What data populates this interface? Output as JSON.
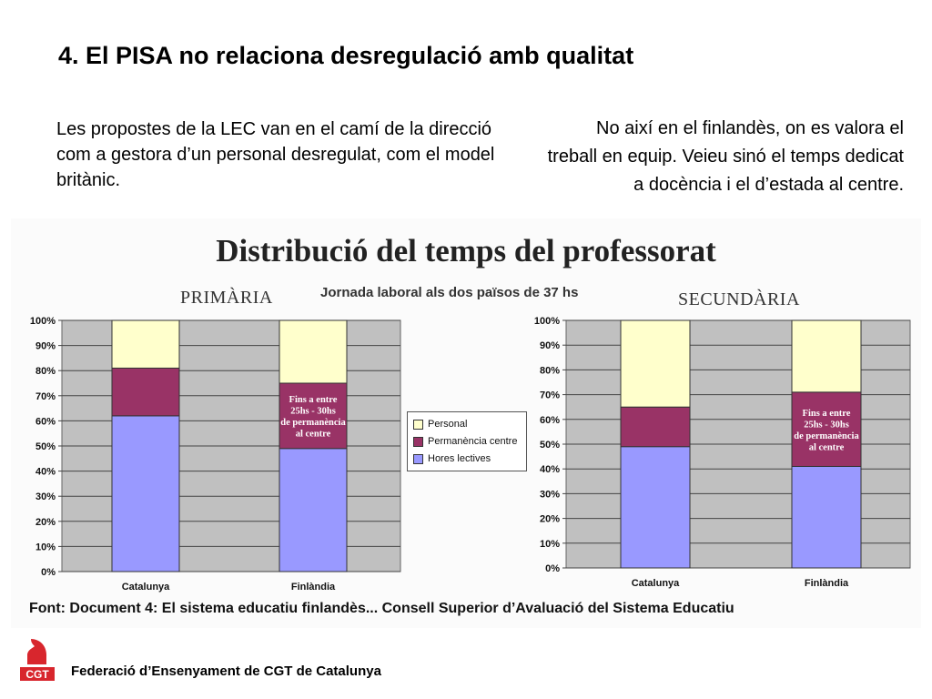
{
  "slide": {
    "title": "4. El PISA no relaciona desregulació amb qualitat",
    "left_text": "Les propostes de la LEC van en el camí de la direcció com a gestora d’un personal desregulat, com el model britànic.",
    "right_text": "No així en el finlandès, on es valora el treball en equip. Veieu sinó el temps dedicat a docència i el d’estada al centre.",
    "footer": "Federació d’Ensenyament de CGT de Catalunya",
    "logo_text": "CGT",
    "logo_icon": "cgt-logo-icon"
  },
  "figure": {
    "title": "Distribució del temps del professorat",
    "subtitle": "Jornada laboral als dos països de 37 hs",
    "source": "Font: Document 4: El sistema educatiu finlandès... Consell Superior d’Avaluació del Sistema Educatiu"
  },
  "colors": {
    "personal": "#ffffcc",
    "permanencia": "#993366",
    "hores": "#9999ff",
    "plot_bg": "#c0c0c0",
    "logo": "#d8262d"
  },
  "legend": {
    "items": [
      {
        "label": "Personal",
        "color": "#ffffcc"
      },
      {
        "label": "Permanència centre",
        "color": "#993366"
      },
      {
        "label": "Hores lectives",
        "color": "#9999ff"
      }
    ]
  },
  "chart_data": [
    {
      "type": "bar",
      "stacked": true,
      "title": "PRIMÀRIA",
      "categories": [
        "Catalunya",
        "Finlàndia"
      ],
      "series": [
        {
          "name": "Hores lectives",
          "values": [
            62,
            49
          ]
        },
        {
          "name": "Permanència centre",
          "values": [
            19,
            26
          ]
        },
        {
          "name": "Personal",
          "values": [
            19,
            25
          ]
        }
      ],
      "ylim": [
        0,
        100
      ],
      "yticks": [
        "0%",
        "10%",
        "20%",
        "30%",
        "40%",
        "50%",
        "60%",
        "70%",
        "80%",
        "90%",
        "100%"
      ],
      "annotation": {
        "lines": [
          "Fins a entre",
          "25hs - 30hs",
          "de permanència",
          "al centre"
        ],
        "category_index": 1
      },
      "grid": true,
      "legend": "right"
    },
    {
      "type": "bar",
      "stacked": true,
      "title": "SECUNDÀRIA",
      "categories": [
        "Catalunya",
        "Finlàndia"
      ],
      "series": [
        {
          "name": "Hores lectives",
          "values": [
            49,
            41
          ]
        },
        {
          "name": "Permanència centre",
          "values": [
            16,
            30
          ]
        },
        {
          "name": "Personal",
          "values": [
            35,
            29
          ]
        }
      ],
      "ylim": [
        0,
        100
      ],
      "yticks": [
        "0%",
        "10%",
        "20%",
        "30%",
        "40%",
        "50%",
        "60%",
        "70%",
        "80%",
        "90%",
        "100%"
      ],
      "annotation": {
        "lines": [
          "Fins a entre",
          "25hs - 30hs",
          "de permanència",
          "al centre"
        ],
        "category_index": 1
      },
      "grid": true,
      "legend": "none"
    }
  ]
}
